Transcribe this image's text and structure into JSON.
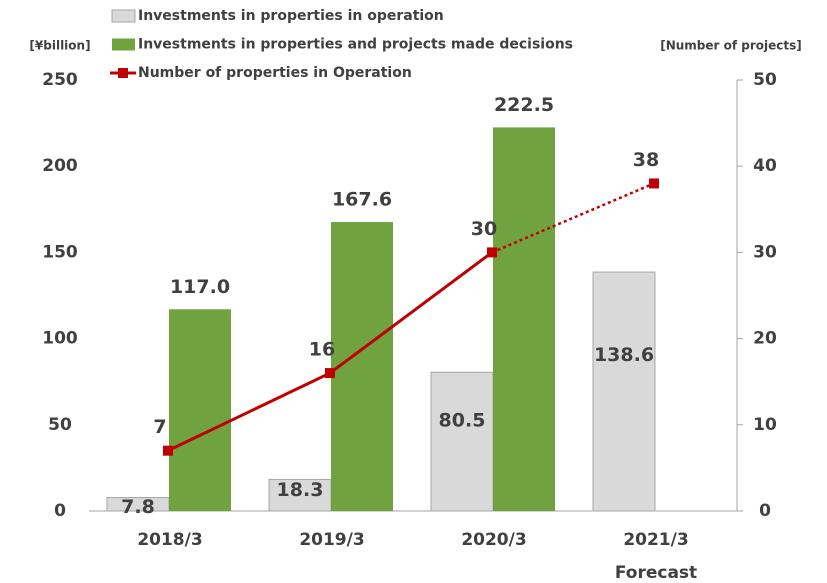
{
  "chart_data": {
    "type": "bar_line",
    "categories": [
      "2018/3",
      "2019/3",
      "2020/3",
      "2021/3"
    ],
    "annotation": "Forecast",
    "forecast_index": 3,
    "y_label": "[¥billion]",
    "y2_label": "[Number of projects]",
    "ylim": [
      0,
      250
    ],
    "yticks": [
      0,
      50,
      100,
      150,
      200,
      250
    ],
    "y2lim": [
      0,
      50
    ],
    "y2ticks": [
      0,
      10,
      20,
      30,
      40,
      50
    ],
    "series": [
      {
        "name": "Investments in properties in operation",
        "type": "bar",
        "color": "#d9d9d9",
        "values": [
          7.8,
          18.3,
          80.5,
          138.6
        ]
      },
      {
        "name": "Investments in properties and projects made decisions",
        "type": "bar",
        "color": "#70a33f",
        "values": [
          117,
          167.6,
          222.5,
          null
        ],
        "value_labels": [
          "117.0",
          "167.6",
          "222.5",
          null
        ]
      },
      {
        "name": "Number of properties in Operation",
        "type": "line",
        "axis": "y2",
        "color": "#c00000",
        "values": [
          7,
          16,
          30,
          38
        ]
      }
    ]
  }
}
